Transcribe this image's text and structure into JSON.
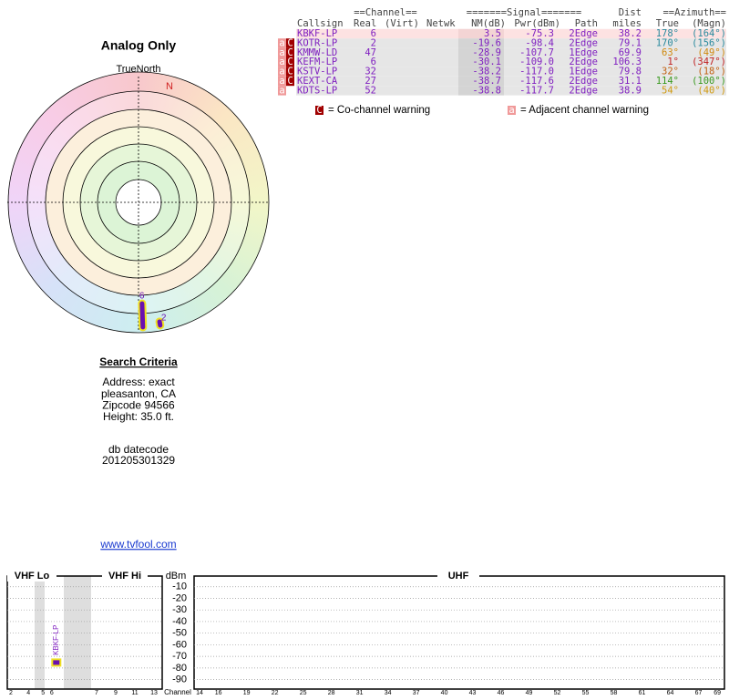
{
  "polar": {
    "title": "Analog Only",
    "north_label": "TrueNorth",
    "n": "N"
  },
  "table": {
    "group_headers": [
      "==Channel==",
      "=======Signal=======",
      "Dist",
      "==Azimuth=="
    ],
    "headers": [
      "Callsign",
      "Real",
      "(Virt)",
      "Netwk",
      "NM(dB)",
      "Pwr(dBm)",
      "Path",
      "miles",
      "True",
      "(Magn)"
    ],
    "rows": [
      {
        "warnings": [],
        "callsign": "KBKF-LP",
        "real": 6,
        "nm": 3.5,
        "pwr": -75.3,
        "path": "2Edge",
        "dist": 38.2,
        "true": {
          "value": 178,
          "label": "178°"
        },
        "magn": {
          "value": 164,
          "label": "(164°)"
        },
        "color": "#2a8a9e"
      },
      {
        "warnings": [
          "a",
          "C"
        ],
        "callsign": "KOTR-LP",
        "real": 2,
        "nm": -19.6,
        "pwr": -98.4,
        "path": "2Edge",
        "dist": 79.1,
        "true": {
          "value": 170,
          "label": "170°"
        },
        "magn": {
          "value": 156,
          "label": "(156°)"
        },
        "color": "#2a8a9e"
      },
      {
        "warnings": [
          "a",
          "C"
        ],
        "callsign": "KMMW-LD",
        "real": 47,
        "nm": -28.9,
        "pwr": -107.7,
        "path": "1Edge",
        "dist": 69.9,
        "true": {
          "value": 63,
          "label": "63°"
        },
        "magn": {
          "value": 49,
          "label": "(49°)"
        },
        "color": "#d08a10"
      },
      {
        "warnings": [
          "a",
          "C"
        ],
        "callsign": "KEFM-LP",
        "real": 6,
        "nm": -30.1,
        "pwr": {
          "value": -109,
          "label": "-109.0"
        },
        "path": "2Edge",
        "dist": 106.3,
        "true": {
          "value": 1,
          "label": "1°"
        },
        "magn": {
          "value": 347,
          "label": "(347°)"
        },
        "color": "#c02020"
      },
      {
        "warnings": [
          "a",
          "C"
        ],
        "callsign": "KSTV-LP",
        "real": 32,
        "nm": -38.2,
        "pwr": {
          "value": -117,
          "label": "-117.0"
        },
        "path": "1Edge",
        "dist": 79.8,
        "true": {
          "value": 32,
          "label": "32°"
        },
        "magn": {
          "value": 18,
          "label": "(18°)"
        },
        "color": "#c06010"
      },
      {
        "warnings": [
          "a",
          "C"
        ],
        "callsign": "KEXT-CA",
        "real": 27,
        "nm": -38.7,
        "pwr": -117.6,
        "path": "2Edge",
        "dist": 31.1,
        "true": {
          "value": 114,
          "label": "114°"
        },
        "magn": {
          "value": 100,
          "label": "(100°)"
        },
        "color": "#3a9a20"
      },
      {
        "warnings": [
          "a"
        ],
        "callsign": "KDTS-LP",
        "real": 52,
        "nm": -38.8,
        "pwr": -117.7,
        "path": "2Edge",
        "dist": 38.9,
        "true": {
          "value": 54,
          "label": "54°"
        },
        "magn": {
          "value": 40,
          "label": "(40°)"
        },
        "color": "#d09a10"
      }
    ]
  },
  "legend": [
    {
      "symbol": "C",
      "text": "= Co-channel warning"
    },
    {
      "symbol": "a",
      "text": "= Adjacent channel warning"
    }
  ],
  "criteria": {
    "title": "Search Criteria",
    "lines": [
      "Address: exact",
      "pleasanton, CA",
      "Zipcode 94566",
      "Height: 35.0 ft."
    ],
    "db_label": "db datecode",
    "db_code": "201205301329",
    "link": "www.tvfool.com"
  },
  "spectrum": {
    "sections": [
      "VHF Lo",
      "VHF Hi",
      "UHF"
    ],
    "unit": "dBm",
    "x_label": "Channel",
    "ylim": [
      0,
      -95
    ],
    "yticks": [
      -10,
      -20,
      -30,
      -40,
      -50,
      -60,
      -70,
      -80,
      -90
    ],
    "vhf_lo_ticks": [
      2,
      4,
      5,
      6
    ],
    "vhf_hi_ticks": [
      7,
      9,
      11,
      13
    ],
    "uhf_ticks": [
      14,
      16,
      19,
      22,
      25,
      28,
      31,
      34,
      37,
      40,
      43,
      46,
      49,
      52,
      55,
      58,
      61,
      64,
      67,
      69
    ]
  }
}
